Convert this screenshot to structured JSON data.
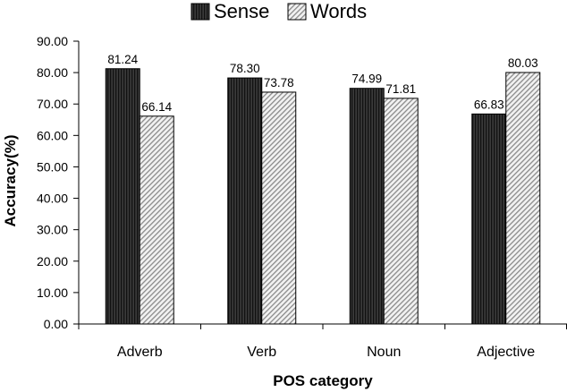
{
  "chart_data": {
    "type": "bar",
    "categories": [
      "Adverb",
      "Verb",
      "Noun",
      "Adjective"
    ],
    "series": [
      {
        "name": "Sense",
        "values": [
          81.24,
          78.3,
          74.99,
          66.83
        ],
        "value_labels": [
          "81.24",
          "78.30",
          "74.99",
          "66.83"
        ]
      },
      {
        "name": "Words",
        "values": [
          66.14,
          73.78,
          71.81,
          80.03
        ],
        "value_labels": [
          "66.14",
          "73.78",
          "71.81",
          "80.03"
        ]
      }
    ],
    "title": "",
    "xlabel": "POS category",
    "ylabel": "Accuracy(%)",
    "ylim": [
      0,
      90
    ],
    "yticks": [
      "0.00",
      "10.00",
      "20.00",
      "30.00",
      "40.00",
      "50.00",
      "60.00",
      "70.00",
      "80.00",
      "90.00"
    ],
    "grid": false,
    "legend": "top-center",
    "colors": {
      "sense_fill": "#3a3a3a",
      "sense_stripe": "#111111",
      "words_fill": "#f2f2f2",
      "words_stripe": "#8a8a8a"
    }
  }
}
